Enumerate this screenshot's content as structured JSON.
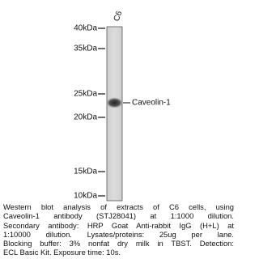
{
  "lane_label": "C6",
  "markers": [
    "40kDa",
    "35kDa",
    "25kDa",
    "20kDa",
    "15kDa",
    "10kDa"
  ],
  "band_label": "Caveolin-1",
  "caption": [
    "Western blot analysis of extracts of C6 cells, using",
    "Caveolin-1 antibody (STJ28041) at 1:1000 dilution.",
    "Secondary antibody: HRP Goat Anti-rabbit IgG (H+L) at",
    "1:10000 dilution. Lysates/proteins: 25ug per lane.",
    "Blocking buffer: 3% nonfat dry milk in TBST. Detection:",
    "ECL Basic Kit. Exposure time: 10s."
  ]
}
